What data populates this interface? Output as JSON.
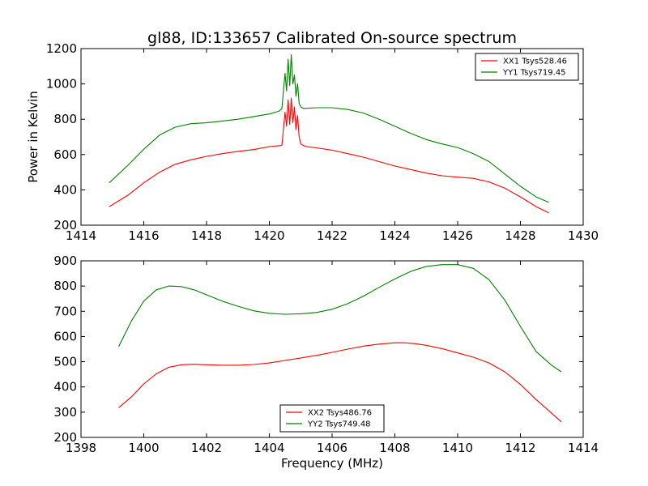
{
  "title": "gl88, ID:133657 Calibrated On-source spectrum",
  "chart_data": [
    {
      "type": "line",
      "ylabel": "Power in Kelvin",
      "xlabel": "",
      "xlim": [
        1414,
        1430
      ],
      "ylim": [
        200,
        1200
      ],
      "xticks": [
        1414,
        1416,
        1418,
        1420,
        1422,
        1424,
        1426,
        1428,
        1430
      ],
      "yticks": [
        200,
        400,
        600,
        800,
        1000,
        1200
      ],
      "legend_position": "top-right",
      "series": [
        {
          "name": "XX1 Tsys528.46",
          "color": "#ff0000",
          "x": [
            1414.9,
            1415.5,
            1416.0,
            1416.5,
            1417.0,
            1417.5,
            1418.0,
            1418.5,
            1419.0,
            1419.5,
            1420.0,
            1420.3,
            1420.4,
            1420.5,
            1420.55,
            1420.6,
            1420.65,
            1420.7,
            1420.75,
            1420.8,
            1420.85,
            1420.9,
            1420.95,
            1421.0,
            1421.1,
            1421.2,
            1421.5,
            1422.0,
            1422.5,
            1423.0,
            1423.5,
            1424.0,
            1424.5,
            1425.0,
            1425.5,
            1426.0,
            1426.5,
            1427.0,
            1427.5,
            1428.0,
            1428.5,
            1428.9
          ],
          "y": [
            305,
            370,
            440,
            500,
            545,
            570,
            590,
            605,
            618,
            628,
            645,
            650,
            652,
            840,
            760,
            910,
            770,
            920,
            780,
            870,
            740,
            820,
            700,
            660,
            650,
            645,
            638,
            625,
            605,
            585,
            560,
            535,
            515,
            495,
            480,
            472,
            465,
            445,
            410,
            360,
            305,
            270
          ]
        },
        {
          "name": "YY1 Tsys719.45",
          "color": "#008000",
          "x": [
            1414.9,
            1415.5,
            1416.0,
            1416.5,
            1417.0,
            1417.5,
            1418.0,
            1418.5,
            1419.0,
            1419.5,
            1420.0,
            1420.3,
            1420.4,
            1420.5,
            1420.55,
            1420.6,
            1420.65,
            1420.7,
            1420.75,
            1420.8,
            1420.85,
            1420.9,
            1420.95,
            1421.0,
            1421.1,
            1421.2,
            1421.5,
            1422.0,
            1422.5,
            1423.0,
            1423.5,
            1424.0,
            1424.5,
            1425.0,
            1425.5,
            1426.0,
            1426.5,
            1427.0,
            1427.5,
            1428.0,
            1428.5,
            1428.9
          ],
          "y": [
            440,
            540,
            630,
            710,
            755,
            775,
            780,
            790,
            800,
            815,
            830,
            845,
            860,
            1060,
            960,
            1140,
            990,
            1165,
            1000,
            1050,
            930,
            1000,
            890,
            870,
            860,
            862,
            865,
            865,
            855,
            835,
            800,
            760,
            720,
            685,
            660,
            640,
            605,
            560,
            490,
            420,
            360,
            330
          ]
        }
      ]
    },
    {
      "type": "line",
      "xlabel": "Frequency (MHz)",
      "ylabel": "",
      "xlim": [
        1398,
        1414
      ],
      "ylim": [
        200,
        900
      ],
      "xticks": [
        1398,
        1400,
        1402,
        1404,
        1406,
        1408,
        1410,
        1412,
        1414
      ],
      "yticks": [
        200,
        300,
        400,
        500,
        600,
        700,
        800,
        900
      ],
      "legend_position": "bottom-center",
      "series": [
        {
          "name": "XX2 Tsys486.76",
          "color": "#ff0000",
          "x": [
            1399.2,
            1399.6,
            1400.0,
            1400.4,
            1400.8,
            1401.2,
            1401.6,
            1402.0,
            1402.5,
            1403.0,
            1403.5,
            1404.0,
            1404.5,
            1405.0,
            1405.5,
            1406.0,
            1406.5,
            1407.0,
            1407.5,
            1408.0,
            1408.3,
            1408.6,
            1409.0,
            1409.5,
            1410.0,
            1410.5,
            1411.0,
            1411.5,
            1412.0,
            1412.5,
            1413.0,
            1413.3
          ],
          "y": [
            318,
            360,
            412,
            452,
            478,
            488,
            490,
            488,
            486,
            486,
            489,
            495,
            505,
            515,
            525,
            537,
            550,
            562,
            570,
            575,
            575,
            572,
            565,
            552,
            535,
            518,
            495,
            460,
            410,
            350,
            295,
            262
          ]
        },
        {
          "name": "YY2 Tsys749.48",
          "color": "#008000",
          "x": [
            1399.2,
            1399.6,
            1400.0,
            1400.4,
            1400.8,
            1401.2,
            1401.6,
            1402.0,
            1402.5,
            1403.0,
            1403.5,
            1404.0,
            1404.5,
            1405.0,
            1405.5,
            1406.0,
            1406.5,
            1407.0,
            1407.5,
            1408.0,
            1408.5,
            1409.0,
            1409.5,
            1410.0,
            1410.5,
            1411.0,
            1411.5,
            1412.0,
            1412.5,
            1413.0,
            1413.3
          ],
          "y": [
            560,
            660,
            740,
            785,
            800,
            798,
            785,
            765,
            740,
            720,
            702,
            692,
            688,
            690,
            695,
            708,
            730,
            760,
            795,
            828,
            858,
            878,
            885,
            885,
            870,
            825,
            745,
            640,
            540,
            485,
            460
          ]
        }
      ]
    }
  ]
}
